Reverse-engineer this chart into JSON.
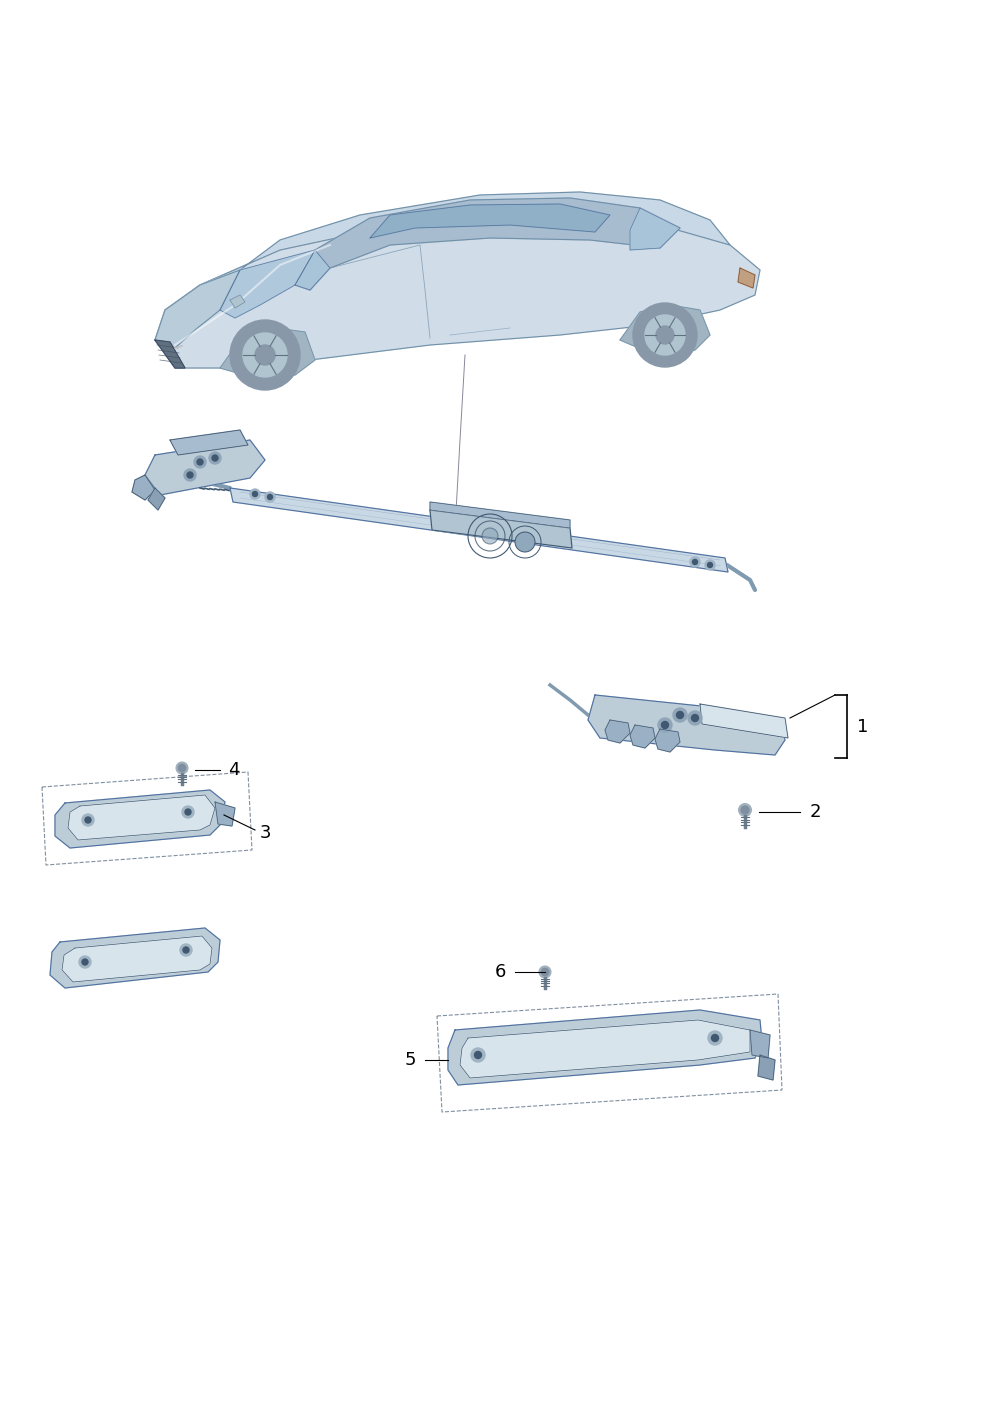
{
  "background_color": "#ffffff",
  "fig_width": 9.92,
  "fig_height": 14.03,
  "car_body_color": "#d0dce8",
  "car_edge_color": "#7090a8",
  "car_roof_color": "#a8bcd0",
  "car_glass_color": "#90b0c8",
  "car_wheel_color": "#8898a8",
  "car_dark_color": "#607080",
  "part_fill_color": "#bccdd8",
  "part_edge_color": "#5070a0",
  "part_dark_color": "#405870",
  "part_light_color": "#d8e4ec",
  "text_color": "#000000",
  "label_line_color": "#000000",
  "pointer_color": "#888899",
  "dashed_box_color": "#8090a0"
}
